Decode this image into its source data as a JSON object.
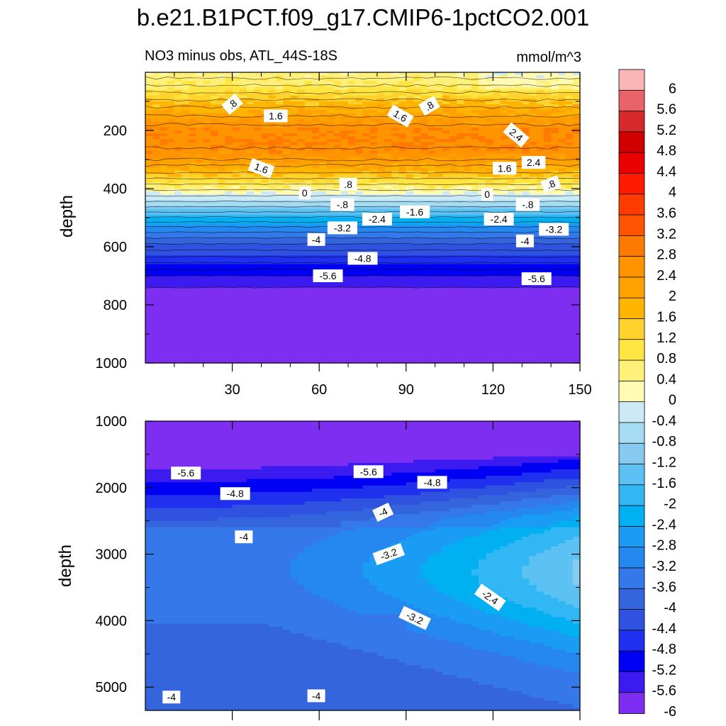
{
  "figure": {
    "title": "b.e21.B1PCT.f09_g17.CMIP6-1pctCO2.001",
    "subtitle_left": "NO3 minus obs, ATL_44S-18S",
    "subtitle_right": "mmol/m^3"
  },
  "colors": {
    "levels": [
      {
        "label": "6",
        "color": "#fbb5b5"
      },
      {
        "label": "5.6",
        "color": "#e8636a"
      },
      {
        "label": "5.2",
        "color": "#d62a2a"
      },
      {
        "label": "4.8",
        "color": "#d00000"
      },
      {
        "label": "4.4",
        "color": "#ea0000"
      },
      {
        "label": "4",
        "color": "#ff1a00"
      },
      {
        "label": "3.6",
        "color": "#ff3c00"
      },
      {
        "label": "3.2",
        "color": "#ff5500"
      },
      {
        "label": "2.8",
        "color": "#ff7b00"
      },
      {
        "label": "2.4",
        "color": "#ff9300"
      },
      {
        "label": "2",
        "color": "#ffa200"
      },
      {
        "label": "1.6",
        "color": "#ffb400"
      },
      {
        "label": "1.2",
        "color": "#ffd22e"
      },
      {
        "label": "0.8",
        "color": "#ffe541"
      },
      {
        "label": "0.4",
        "color": "#fff07a"
      },
      {
        "label": "0",
        "color": "#fffab4"
      },
      {
        "label": "-0.4",
        "color": "#cce9f6"
      },
      {
        "label": "-0.8",
        "color": "#a6dcf2"
      },
      {
        "label": "-1.2",
        "color": "#86cbef"
      },
      {
        "label": "-1.6",
        "color": "#5cc2f3"
      },
      {
        "label": "-2",
        "color": "#32b7f5"
      },
      {
        "label": "-2.4",
        "color": "#00b0f0"
      },
      {
        "label": "-2.8",
        "color": "#1a9cf5"
      },
      {
        "label": "-3.2",
        "color": "#2488f0"
      },
      {
        "label": "-3.6",
        "color": "#3478ea"
      },
      {
        "label": "-4",
        "color": "#3565dc"
      },
      {
        "label": "-4.4",
        "color": "#2f52e0"
      },
      {
        "label": "-4.8",
        "color": "#1f30ee"
      },
      {
        "label": "-5.2",
        "color": "#0000f5"
      },
      {
        "label": "-5.6",
        "color": "#3b1bf0"
      },
      {
        "label": "-6",
        "color": "#7d2ef0"
      }
    ]
  },
  "chart_data": [
    {
      "type": "heatmap",
      "panel": "upper",
      "xlabel": "",
      "ylabel": "depth",
      "xlim": [
        0,
        150
      ],
      "ylim": [
        1000,
        0
      ],
      "x_ticks": [
        "30",
        "60",
        "90",
        "120",
        "150"
      ],
      "x_tick_values": [
        30,
        60,
        90,
        120,
        150
      ],
      "y_ticks": [
        "200",
        "400",
        "600",
        "800",
        "1000"
      ],
      "y_tick_values": [
        200,
        400,
        600,
        800,
        1000
      ],
      "depth_profile": [
        {
          "depth": 0,
          "value": 0.3
        },
        {
          "depth": 50,
          "value": 0.6
        },
        {
          "depth": 100,
          "value": 1.4
        },
        {
          "depth": 150,
          "value": 2.0
        },
        {
          "depth": 200,
          "value": 2.5
        },
        {
          "depth": 250,
          "value": 2.6
        },
        {
          "depth": 300,
          "value": 2.2
        },
        {
          "depth": 340,
          "value": 1.6
        },
        {
          "depth": 380,
          "value": 0.8
        },
        {
          "depth": 410,
          "value": 0.0
        },
        {
          "depth": 440,
          "value": -0.6
        },
        {
          "depth": 470,
          "value": -1.3
        },
        {
          "depth": 500,
          "value": -2.1
        },
        {
          "depth": 530,
          "value": -2.9
        },
        {
          "depth": 560,
          "value": -3.6
        },
        {
          "depth": 600,
          "value": -4.3
        },
        {
          "depth": 650,
          "value": -4.9
        },
        {
          "depth": 700,
          "value": -5.4
        },
        {
          "depth": 760,
          "value": -6.0
        },
        {
          "depth": 1000,
          "value": -6.2
        }
      ],
      "contour_labels": [
        {
          "text": ".8",
          "x": 30,
          "depth": 110,
          "angle": -40
        },
        {
          "text": "1.6",
          "x": 45,
          "depth": 150,
          "angle": 0
        },
        {
          "text": "1.6",
          "x": 88,
          "depth": 150,
          "angle": 30
        },
        {
          "text": ".8",
          "x": 98,
          "depth": 115,
          "angle": -30
        },
        {
          "text": "2.4",
          "x": 128,
          "depth": 215,
          "angle": 40
        },
        {
          "text": "2.4",
          "x": 134,
          "depth": 310,
          "angle": 0
        },
        {
          "text": "1.6",
          "x": 40,
          "depth": 330,
          "angle": 20
        },
        {
          "text": "1.6",
          "x": 124,
          "depth": 330,
          "angle": 0
        },
        {
          "text": ".8",
          "x": 70,
          "depth": 385,
          "angle": 0
        },
        {
          "text": ".8",
          "x": 140,
          "depth": 385,
          "angle": -20
        },
        {
          "text": "0",
          "x": 55,
          "depth": 415,
          "angle": 0
        },
        {
          "text": "0",
          "x": 118,
          "depth": 420,
          "angle": 0
        },
        {
          "text": "-.8",
          "x": 68,
          "depth": 455,
          "angle": 0
        },
        {
          "text": "-.8",
          "x": 132,
          "depth": 455,
          "angle": 0
        },
        {
          "text": "-1.6",
          "x": 93,
          "depth": 480,
          "angle": 0
        },
        {
          "text": "-2.4",
          "x": 80,
          "depth": 505,
          "angle": 0
        },
        {
          "text": "-2.4",
          "x": 122,
          "depth": 505,
          "angle": 0
        },
        {
          "text": "-3.2",
          "x": 68,
          "depth": 535,
          "angle": 0
        },
        {
          "text": "-3.2",
          "x": 141,
          "depth": 540,
          "angle": 0
        },
        {
          "text": "-4",
          "x": 59,
          "depth": 575,
          "angle": 0
        },
        {
          "text": "-4",
          "x": 131,
          "depth": 580,
          "angle": 0
        },
        {
          "text": "-4.8",
          "x": 75,
          "depth": 640,
          "angle": 0
        },
        {
          "text": "-5.6",
          "x": 63,
          "depth": 700,
          "angle": 0
        },
        {
          "text": "-5.6",
          "x": 135,
          "depth": 710,
          "angle": 0
        }
      ]
    },
    {
      "type": "heatmap",
      "panel": "lower",
      "xlabel": "",
      "ylabel": "depth",
      "xlim": [
        0,
        150
      ],
      "ylim": [
        5350,
        1000
      ],
      "y_ticks": [
        "1000",
        "2000",
        "3000",
        "4000",
        "5000"
      ],
      "y_tick_values": [
        1000,
        2000,
        3000,
        4000,
        5000
      ],
      "contour_labels": [
        {
          "text": "-5.6",
          "x": 14,
          "depth": 1780,
          "angle": 0
        },
        {
          "text": "-5.6",
          "x": 77,
          "depth": 1760,
          "angle": 0
        },
        {
          "text": "-4.8",
          "x": 31,
          "depth": 2090,
          "angle": 0
        },
        {
          "text": "-4.8",
          "x": 99,
          "depth": 1920,
          "angle": 0
        },
        {
          "text": "-4",
          "x": 82,
          "depth": 2370,
          "angle": -25
        },
        {
          "text": "-4",
          "x": 34,
          "depth": 2740,
          "angle": 0
        },
        {
          "text": "-3.2",
          "x": 84,
          "depth": 3000,
          "angle": -20
        },
        {
          "text": "-2.4",
          "x": 119,
          "depth": 3650,
          "angle": 35
        },
        {
          "text": "-3.2",
          "x": 93,
          "depth": 3960,
          "angle": 25
        },
        {
          "text": "-4",
          "x": 9,
          "depth": 5150,
          "angle": 0
        },
        {
          "text": "-4",
          "x": 59,
          "depth": 5130,
          "angle": 0
        }
      ]
    }
  ]
}
